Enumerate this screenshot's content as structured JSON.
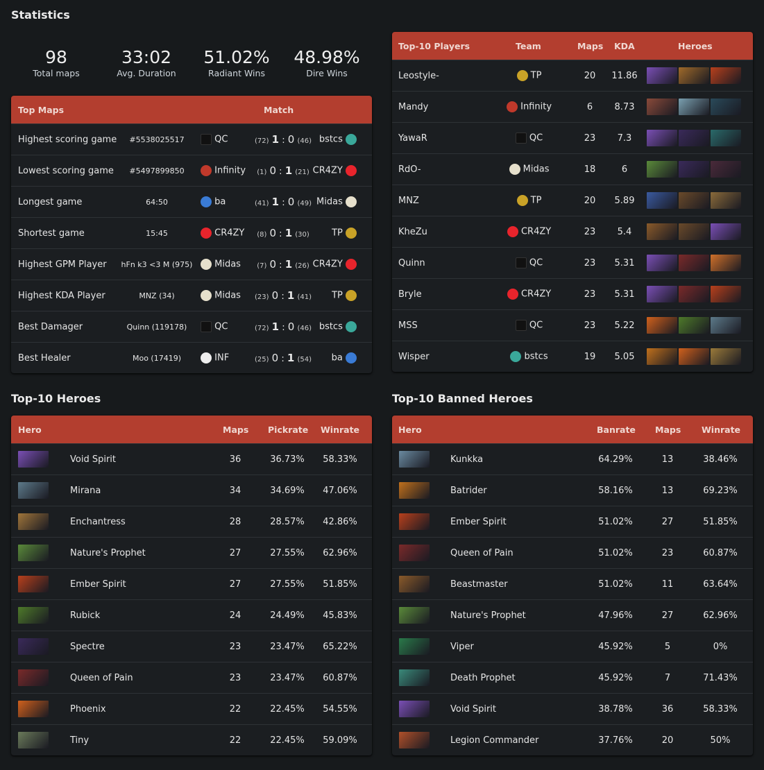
{
  "title": "Statistics",
  "stats": [
    {
      "value": "98",
      "label": "Total maps"
    },
    {
      "value": "33:02",
      "label": "Avg. Duration"
    },
    {
      "value": "51.02%",
      "label": "Radiant Wins"
    },
    {
      "value": "48.98%",
      "label": "Dire Wins"
    }
  ],
  "colors": {
    "header": "#b33e2f",
    "background": "#171a1c"
  },
  "top_maps": {
    "headers": [
      "Top Maps",
      "Match"
    ],
    "rows": [
      {
        "label": "Highest scoring game",
        "detail": "#5538025517",
        "team1": "QC",
        "s1": "(72)",
        "score": [
          "1",
          "0"
        ],
        "s2": "(46)",
        "team2": "bstcs"
      },
      {
        "label": "Lowest scoring game",
        "detail": "#5497899850",
        "team1": "Infinity",
        "s1": "(1)",
        "score": [
          "0",
          "1"
        ],
        "s2": "(21)",
        "team2": "CR4ZY"
      },
      {
        "label": "Longest game",
        "detail": "64:50",
        "team1": "ba",
        "s1": "(41)",
        "score": [
          "1",
          "0"
        ],
        "s2": "(49)",
        "team2": "Midas"
      },
      {
        "label": "Shortest game",
        "detail": "15:45",
        "team1": "CR4ZY",
        "s1": "(8)",
        "score": [
          "0",
          "1"
        ],
        "s2": "(30)",
        "team2": "TP"
      },
      {
        "label": "Highest GPM Player",
        "detail": "hFn k3 <3 M (975)",
        "team1": "Midas",
        "s1": "(7)",
        "score": [
          "0",
          "1"
        ],
        "s2": "(26)",
        "team2": "CR4ZY"
      },
      {
        "label": "Highest KDA Player",
        "detail": "MNZ (34)",
        "team1": "Midas",
        "s1": "(23)",
        "score": [
          "0",
          "1"
        ],
        "s2": "(41)",
        "team2": "TP"
      },
      {
        "label": "Best Damager",
        "detail": "Quinn (119178)",
        "team1": "QC",
        "s1": "(72)",
        "score": [
          "1",
          "0"
        ],
        "s2": "(46)",
        "team2": "bstcs"
      },
      {
        "label": "Best Healer",
        "detail": "Moo (17419)",
        "team1": "INF",
        "s1": "(25)",
        "score": [
          "0",
          "1"
        ],
        "s2": "(54)",
        "team2": "ba"
      }
    ]
  },
  "players": {
    "headers": [
      "Top-10 Players",
      "Team",
      "Maps",
      "KDA",
      "Heroes"
    ],
    "rows": [
      {
        "name": "Leostyle-",
        "team": "TP",
        "maps": "20",
        "kda": "11.86",
        "heroes": [
          "Void Spirit",
          "Dragon Knight",
          "Ember Spirit"
        ]
      },
      {
        "name": "Mandy",
        "team": "Infinity",
        "maps": "6",
        "kda": "8.73",
        "heroes": [
          "Anti-Mage",
          "Tusk",
          "Phantom Assassin"
        ]
      },
      {
        "name": "YawaR",
        "team": "QC",
        "maps": "23",
        "kda": "7.3",
        "heroes": [
          "Void Spirit",
          "Spectre",
          "Weaver"
        ]
      },
      {
        "name": "RdO-",
        "team": "Midas",
        "maps": "18",
        "kda": "6",
        "heroes": [
          "Nature's Prophet",
          "Spectre",
          "Templar Assassin"
        ]
      },
      {
        "name": "MNZ",
        "team": "TP",
        "maps": "20",
        "kda": "5.89",
        "heroes": [
          "Morphling",
          "Earthshaker",
          "Clockwerk"
        ]
      },
      {
        "name": "KheZu",
        "team": "CR4ZY",
        "maps": "23",
        "kda": "5.4",
        "heroes": [
          "Beastmaster",
          "Earthshaker",
          "Void Spirit"
        ]
      },
      {
        "name": "Quinn",
        "team": "QC",
        "maps": "23",
        "kda": "5.31",
        "heroes": [
          "Void Spirit",
          "Queen of Pain",
          "Lina"
        ]
      },
      {
        "name": "Bryle",
        "team": "CR4ZY",
        "maps": "23",
        "kda": "5.31",
        "heroes": [
          "Void Spirit",
          "Queen of Pain",
          "Ember Spirit"
        ]
      },
      {
        "name": "MSS",
        "team": "QC",
        "maps": "23",
        "kda": "5.22",
        "heroes": [
          "Phoenix",
          "Rubick",
          "Mirana"
        ]
      },
      {
        "name": "Wisper",
        "team": "bstcs",
        "maps": "19",
        "kda": "5.05",
        "heroes": [
          "Batrider",
          "Phoenix",
          "Tinker"
        ]
      }
    ]
  },
  "heroes": {
    "title": "Top-10 Heroes",
    "headers": [
      "Hero",
      "Maps",
      "Pickrate",
      "Winrate"
    ],
    "rows": [
      {
        "name": "Void Spirit",
        "maps": "36",
        "pick": "36.73%",
        "win": "58.33%"
      },
      {
        "name": "Mirana",
        "maps": "34",
        "pick": "34.69%",
        "win": "47.06%"
      },
      {
        "name": "Enchantress",
        "maps": "28",
        "pick": "28.57%",
        "win": "42.86%"
      },
      {
        "name": "Nature's Prophet",
        "maps": "27",
        "pick": "27.55%",
        "win": "62.96%"
      },
      {
        "name": "Ember Spirit",
        "maps": "27",
        "pick": "27.55%",
        "win": "51.85%"
      },
      {
        "name": "Rubick",
        "maps": "24",
        "pick": "24.49%",
        "win": "45.83%"
      },
      {
        "name": "Spectre",
        "maps": "23",
        "pick": "23.47%",
        "win": "65.22%"
      },
      {
        "name": "Queen of Pain",
        "maps": "23",
        "pick": "23.47%",
        "win": "60.87%"
      },
      {
        "name": "Phoenix",
        "maps": "22",
        "pick": "22.45%",
        "win": "54.55%"
      },
      {
        "name": "Tiny",
        "maps": "22",
        "pick": "22.45%",
        "win": "59.09%"
      }
    ]
  },
  "banned": {
    "title": "Top-10 Banned Heroes",
    "headers": [
      "Hero",
      "Banrate",
      "Maps",
      "Winrate"
    ],
    "rows": [
      {
        "name": "Kunkka",
        "ban": "64.29%",
        "maps": "13",
        "win": "38.46%"
      },
      {
        "name": "Batrider",
        "ban": "58.16%",
        "maps": "13",
        "win": "69.23%"
      },
      {
        "name": "Ember Spirit",
        "ban": "51.02%",
        "maps": "27",
        "win": "51.85%"
      },
      {
        "name": "Queen of Pain",
        "ban": "51.02%",
        "maps": "23",
        "win": "60.87%"
      },
      {
        "name": "Beastmaster",
        "ban": "51.02%",
        "maps": "11",
        "win": "63.64%"
      },
      {
        "name": "Nature's Prophet",
        "ban": "47.96%",
        "maps": "27",
        "win": "62.96%"
      },
      {
        "name": "Viper",
        "ban": "45.92%",
        "maps": "5",
        "win": "0%"
      },
      {
        "name": "Death Prophet",
        "ban": "45.92%",
        "maps": "7",
        "win": "71.43%"
      },
      {
        "name": "Void Spirit",
        "ban": "38.78%",
        "maps": "36",
        "win": "58.33%"
      },
      {
        "name": "Legion Commander",
        "ban": "37.76%",
        "maps": "20",
        "win": "50%"
      }
    ]
  }
}
